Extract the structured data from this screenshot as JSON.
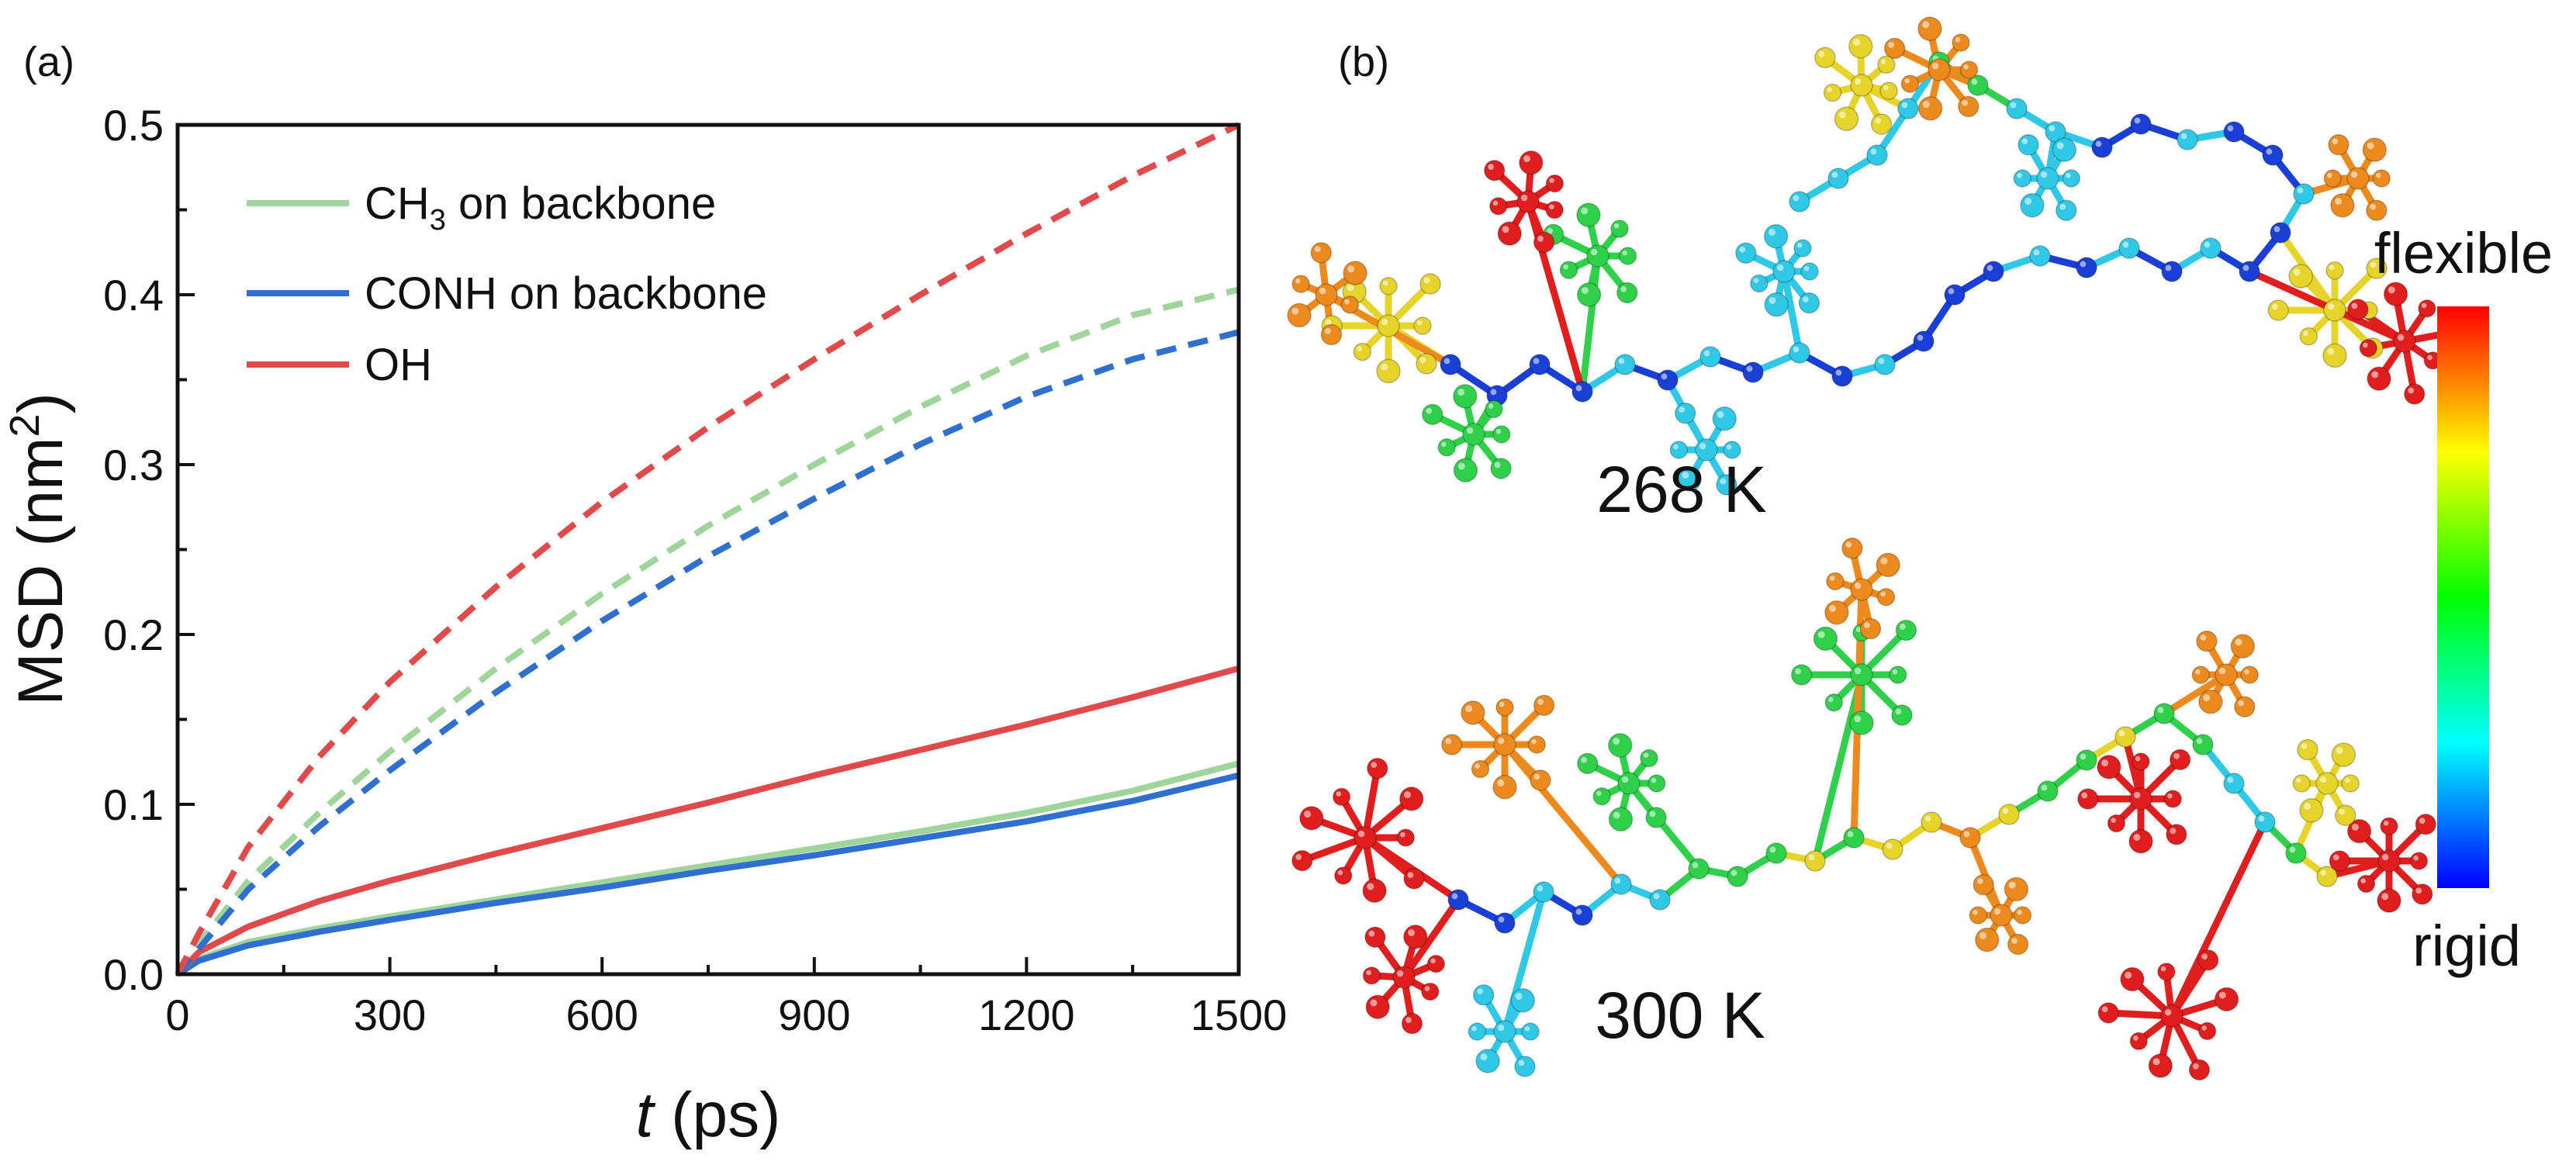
{
  "panel_a_label": "(a)",
  "panel_b_label": "(b)",
  "chart_data": {
    "type": "line",
    "xlabel_var": "t",
    "xlabel_unit": " (ps)",
    "ylabel_base": "MSD (nm",
    "ylabel_sup": "2",
    "ylabel_end": ")",
    "xlim": [
      0,
      1500
    ],
    "ylim": [
      0,
      0.5
    ],
    "xticks": [
      0,
      300,
      600,
      900,
      1200,
      1500
    ],
    "yticks": [
      0.0,
      0.1,
      0.2,
      0.3,
      0.4,
      0.5
    ],
    "ytick_labels": [
      "0.0",
      "0.1",
      "0.2",
      "0.3",
      "0.4",
      "0.5"
    ],
    "legend": [
      {
        "series": "CH3",
        "label_main": "CH",
        "label_sub": "3",
        "label_rest": " on backbone"
      },
      {
        "series": "CONH",
        "label_main": "CONH on backbone",
        "label_sub": "",
        "label_rest": ""
      },
      {
        "series": "OH",
        "label_main": "OH",
        "label_sub": "",
        "label_rest": ""
      }
    ],
    "series": [
      {
        "name": "CH3 on backbone (solid)",
        "group": "CH3",
        "color": "#9fd49a",
        "style": "solid",
        "x": [
          0,
          30,
          100,
          200,
          300,
          450,
          600,
          750,
          900,
          1050,
          1200,
          1350,
          1500
        ],
        "y": [
          0.0,
          0.009,
          0.019,
          0.027,
          0.034,
          0.044,
          0.054,
          0.064,
          0.074,
          0.084,
          0.095,
          0.108,
          0.124
        ]
      },
      {
        "name": "CONH on backbone (solid)",
        "group": "CONH",
        "color": "#2f6fd0",
        "style": "solid",
        "x": [
          0,
          30,
          100,
          200,
          300,
          450,
          600,
          750,
          900,
          1050,
          1200,
          1350,
          1500
        ],
        "y": [
          0.0,
          0.008,
          0.017,
          0.025,
          0.032,
          0.042,
          0.051,
          0.061,
          0.07,
          0.08,
          0.09,
          0.102,
          0.117
        ]
      },
      {
        "name": "OH (solid)",
        "group": "OH",
        "color": "#e04a4a",
        "style": "solid",
        "x": [
          0,
          30,
          100,
          200,
          300,
          450,
          600,
          750,
          900,
          1050,
          1200,
          1350,
          1500
        ],
        "y": [
          0.0,
          0.013,
          0.028,
          0.043,
          0.055,
          0.071,
          0.086,
          0.101,
          0.117,
          0.132,
          0.147,
          0.163,
          0.18
        ]
      },
      {
        "name": "CH3 on backbone (dashed)",
        "group": "CH3",
        "color": "#9fd49a",
        "style": "dashed",
        "x": [
          0,
          30,
          100,
          200,
          300,
          450,
          600,
          750,
          900,
          1050,
          1200,
          1350,
          1500
        ],
        "y": [
          0.0,
          0.018,
          0.055,
          0.095,
          0.131,
          0.18,
          0.224,
          0.264,
          0.3,
          0.334,
          0.364,
          0.388,
          0.403
        ]
      },
      {
        "name": "CONH on backbone (dashed)",
        "group": "CONH",
        "color": "#2f6fd0",
        "style": "dashed",
        "x": [
          0,
          30,
          100,
          200,
          300,
          450,
          600,
          750,
          900,
          1050,
          1200,
          1350,
          1500
        ],
        "y": [
          0.0,
          0.015,
          0.05,
          0.087,
          0.12,
          0.166,
          0.208,
          0.246,
          0.28,
          0.312,
          0.34,
          0.362,
          0.378
        ]
      },
      {
        "name": "OH (dashed)",
        "group": "OH",
        "color": "#e04a4a",
        "style": "dashed",
        "x": [
          0,
          30,
          100,
          200,
          300,
          450,
          600,
          750,
          900,
          1050,
          1200,
          1350,
          1500
        ],
        "y": [
          0.0,
          0.024,
          0.075,
          0.128,
          0.172,
          0.228,
          0.278,
          0.322,
          0.362,
          0.4,
          0.436,
          0.47,
          0.5
        ]
      }
    ]
  },
  "structures": {
    "top_label": "268 K",
    "bottom_label": "300 K"
  },
  "colorbar": {
    "top_label": "flexible",
    "bottom_label": "rigid",
    "stops": [
      "#ff0000",
      "#ff8000",
      "#ffff00",
      "#80ff00",
      "#00ff00",
      "#00ff80",
      "#00ffff",
      "#0080ff",
      "#0000ff"
    ]
  },
  "atom_colors": {
    "blue": "#1a3fd6",
    "cyan": "#2fc8e6",
    "green": "#2fd04a",
    "yellow": "#e6d42a",
    "orange": "#ec8a1e",
    "red": "#e01e1e"
  }
}
